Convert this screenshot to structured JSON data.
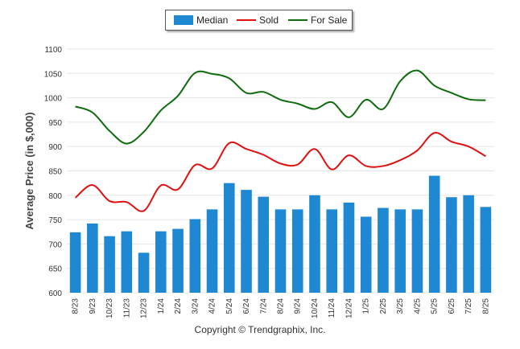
{
  "legend": {
    "median": "Median",
    "sold": "Sold",
    "for_sale": "For Sale"
  },
  "footer": {
    "copyright": "Copyright © Trendgraphix, Inc."
  },
  "colors": {
    "median": "#1f88d2",
    "sold": "#e01010",
    "for_sale": "#0e6b0e",
    "grid": "#e6e6e6"
  },
  "chart_data": {
    "type": "bar",
    "ylabel": "Average Price (in $,000)",
    "ylim": [
      600,
      1100
    ],
    "yticks": [
      600,
      650,
      700,
      750,
      800,
      850,
      900,
      950,
      1000,
      1050,
      1100
    ],
    "legend_position": "top-center",
    "grid": true,
    "categories": [
      "8/23",
      "9/23",
      "10/23",
      "11/23",
      "12/23",
      "1/24",
      "2/24",
      "3/24",
      "4/24",
      "5/24",
      "6/24",
      "7/24",
      "8/24",
      "9/24",
      "10/24",
      "11/24",
      "12/24",
      "1/25",
      "2/25",
      "3/25",
      "4/25",
      "5/25",
      "6/25",
      "7/25",
      "8/25"
    ],
    "series": [
      {
        "name": "Median",
        "kind": "bar",
        "values": [
          724,
          742,
          716,
          726,
          682,
          726,
          731,
          751,
          771,
          825,
          811,
          797,
          771,
          771,
          800,
          771,
          785,
          756,
          774,
          771,
          771,
          840,
          796,
          800,
          776
        ]
      },
      {
        "name": "Sold",
        "kind": "line",
        "values": [
          795,
          821,
          788,
          786,
          768,
          820,
          812,
          862,
          855,
          907,
          895,
          883,
          865,
          863,
          895,
          853,
          882,
          860,
          860,
          872,
          892,
          928,
          910,
          900,
          880
        ]
      },
      {
        "name": "For Sale",
        "kind": "line",
        "values": [
          982,
          970,
          932,
          906,
          930,
          974,
          1004,
          1051,
          1049,
          1040,
          1010,
          1012,
          996,
          988,
          977,
          991,
          960,
          996,
          977,
          1034,
          1056,
          1025,
          1010,
          997,
          995
        ]
      }
    ]
  }
}
